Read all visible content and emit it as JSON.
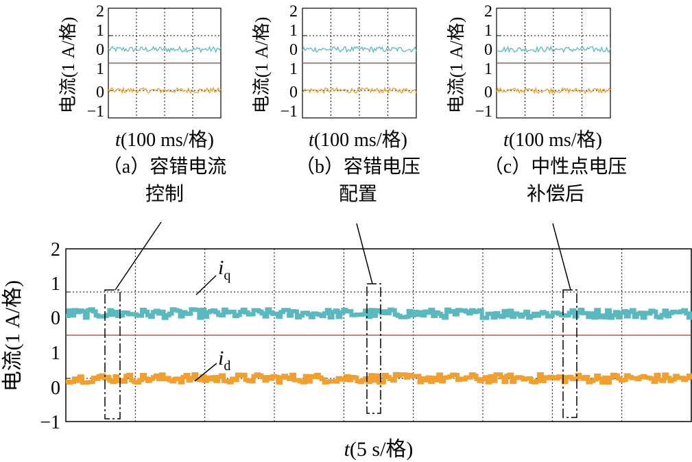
{
  "colors": {
    "iq": "#5ab8bf",
    "id": "#f0a030",
    "divider": "#b03030",
    "grid": "#000000"
  },
  "small_panels": [
    {
      "caption_line1": "（a）容错电流",
      "caption_line2": "控制",
      "ylabel": "电流(1 A/格)",
      "xlabel_var": "t",
      "xlabel_rest": "(100 ms/格)"
    },
    {
      "caption_line1": "（b）容错电压",
      "caption_line2": "配置",
      "ylabel": "电流(1 A/格)",
      "xlabel_var": "t",
      "xlabel_rest": "(100 ms/格)"
    },
    {
      "caption_line1": "（c）中性点电压",
      "caption_line2": "补偿后",
      "ylabel": "电流(1 A/格)",
      "xlabel_var": "t",
      "xlabel_rest": "(100 ms/格)"
    }
  ],
  "main_panel": {
    "ylabel": "电流(1 A/格)",
    "xlabel_var": "t",
    "xlabel_rest": "(5 s/格)",
    "iq_label_main": "i",
    "iq_label_sub": "q",
    "id_label_main": "i",
    "id_label_sub": "d"
  },
  "chart_data": {
    "type": "line",
    "xlabel": "t(5 s/格)",
    "ylabel": "电流(1 A/格)",
    "top_axis": {
      "ticks": [
        "2",
        "1",
        "0"
      ],
      "ylim": [
        0,
        2
      ]
    },
    "bottom_axis": {
      "ticks": [
        "1",
        "0",
        "−1"
      ],
      "ylim": [
        -1,
        1
      ]
    },
    "grid": true,
    "series": [
      {
        "name": "iq",
        "axis": "top",
        "mean": 0.5,
        "noise_amplitude": 0.1
      },
      {
        "name": "id",
        "axis": "bottom",
        "mean": 0.0,
        "noise_amplitude": 0.1
      }
    ],
    "small_panels_xlabel": "t(100 ms/格)",
    "small_panels_ticks": [
      "2",
      "1",
      "0",
      "1",
      "0",
      "−1"
    ]
  }
}
